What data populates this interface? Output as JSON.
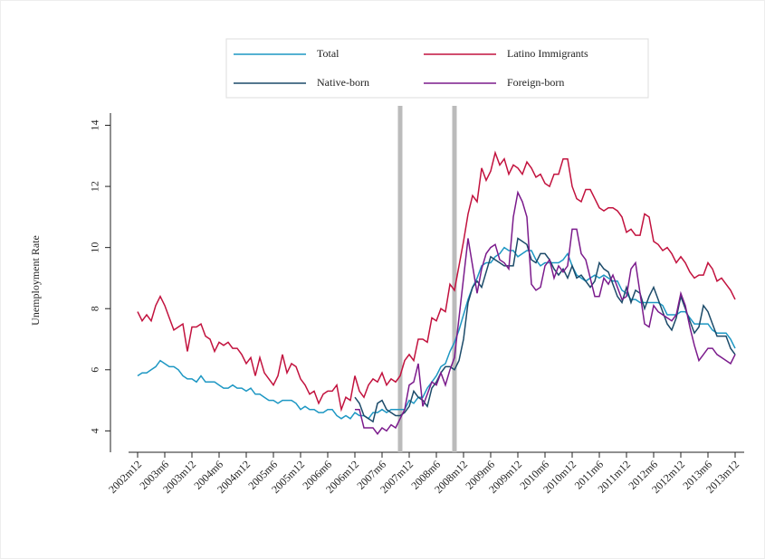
{
  "chart_data": {
    "type": "line",
    "ylabel": "Unemployment Rate",
    "categories": [
      "2002m12",
      null,
      null,
      null,
      null,
      null,
      "2003m6",
      null,
      null,
      null,
      null,
      null,
      "2003m12",
      null,
      null,
      null,
      null,
      null,
      "2004m6",
      null,
      null,
      null,
      null,
      null,
      "2004m12",
      null,
      null,
      null,
      null,
      null,
      "2005m6",
      null,
      null,
      null,
      null,
      null,
      "2005m12",
      null,
      null,
      null,
      null,
      null,
      "2006m6",
      null,
      null,
      null,
      null,
      null,
      "2006m12",
      null,
      null,
      null,
      null,
      null,
      "2007m6",
      null,
      null,
      null,
      null,
      null,
      "2007m12",
      null,
      null,
      null,
      null,
      null,
      "2008m6",
      null,
      null,
      null,
      null,
      null,
      "2008m12",
      null,
      null,
      null,
      null,
      null,
      "2009m6",
      null,
      null,
      null,
      null,
      null,
      "2009m12",
      null,
      null,
      null,
      null,
      null,
      "2010m6",
      null,
      null,
      null,
      null,
      null,
      "2010m12",
      null,
      null,
      null,
      null,
      null,
      "2011m6",
      null,
      null,
      null,
      null,
      null,
      "2011m12",
      null,
      null,
      null,
      null,
      null,
      "2012m6",
      null,
      null,
      null,
      null,
      null,
      "2012m12",
      null,
      null,
      null,
      null,
      null,
      "2013m6",
      null,
      null,
      null,
      null,
      null,
      "2013m12"
    ],
    "series": [
      {
        "name": "Total",
        "color": "#1d97c3",
        "values": [
          5.8,
          5.9,
          5.9,
          6.0,
          6.1,
          6.3,
          6.2,
          6.1,
          6.1,
          6.0,
          5.8,
          5.7,
          5.7,
          5.6,
          5.8,
          5.6,
          5.6,
          5.6,
          5.5,
          5.4,
          5.4,
          5.5,
          5.4,
          5.4,
          5.3,
          5.4,
          5.2,
          5.2,
          5.1,
          5.0,
          5.0,
          4.9,
          5.0,
          5.0,
          5.0,
          4.9,
          4.7,
          4.8,
          4.7,
          4.7,
          4.6,
          4.6,
          4.7,
          4.7,
          4.5,
          4.4,
          4.5,
          4.4,
          4.6,
          4.5,
          4.5,
          4.4,
          4.6,
          4.6,
          4.7,
          4.6,
          4.7,
          4.7,
          4.7,
          4.7,
          5.0,
          4.9,
          5.1,
          5.1,
          5.4,
          5.6,
          5.8,
          6.1,
          6.2,
          6.6,
          6.9,
          7.3,
          7.8,
          8.3,
          8.7,
          9.0,
          9.4,
          9.5,
          9.5,
          9.7,
          9.8,
          10.0,
          9.9,
          9.9,
          9.7,
          9.8,
          9.9,
          9.9,
          9.6,
          9.4,
          9.5,
          9.5,
          9.5,
          9.5,
          9.6,
          9.8,
          9.4,
          9.1,
          9.0,
          8.9,
          9.0,
          9.1,
          9.0,
          9.1,
          9.0,
          8.9,
          8.9,
          8.6,
          8.5,
          8.3,
          8.3,
          8.2,
          8.2,
          8.2,
          8.2,
          8.2,
          8.1,
          7.8,
          7.8,
          7.8,
          7.9,
          7.9,
          7.7,
          7.5,
          7.5,
          7.5,
          7.5,
          7.3,
          7.2,
          7.2,
          7.2,
          7.0,
          6.7
        ]
      },
      {
        "name": "Latino Immigrants",
        "color": "#c2123e",
        "values": [
          7.9,
          7.6,
          7.8,
          7.6,
          8.1,
          8.4,
          8.1,
          7.7,
          7.3,
          7.4,
          7.5,
          6.6,
          7.4,
          7.4,
          7.5,
          7.1,
          7.0,
          6.6,
          6.9,
          6.8,
          6.9,
          6.7,
          6.7,
          6.5,
          6.2,
          6.4,
          5.8,
          6.4,
          5.9,
          5.7,
          5.5,
          5.8,
          6.5,
          5.9,
          6.2,
          6.1,
          5.7,
          5.5,
          5.2,
          5.3,
          4.9,
          5.2,
          5.3,
          5.3,
          5.5,
          4.7,
          5.1,
          5.0,
          5.8,
          5.3,
          5.1,
          5.5,
          5.7,
          5.6,
          5.9,
          5.5,
          5.7,
          5.6,
          5.8,
          6.3,
          6.5,
          6.3,
          7.0,
          7.0,
          6.9,
          7.7,
          7.6,
          8.0,
          7.9,
          8.8,
          8.6,
          9.4,
          10.2,
          11.1,
          11.7,
          11.5,
          12.6,
          12.2,
          12.5,
          13.1,
          12.7,
          12.9,
          12.4,
          12.7,
          12.6,
          12.4,
          12.8,
          12.6,
          12.3,
          12.4,
          12.1,
          12.0,
          12.4,
          12.4,
          12.9,
          12.9,
          12.0,
          11.6,
          11.5,
          11.9,
          11.9,
          11.6,
          11.3,
          11.2,
          11.3,
          11.3,
          11.2,
          11.0,
          10.5,
          10.6,
          10.4,
          10.4,
          11.1,
          11.0,
          10.2,
          10.1,
          9.9,
          10.0,
          9.8,
          9.5,
          9.7,
          9.5,
          9.2,
          9.0,
          9.1,
          9.1,
          9.5,
          9.3,
          8.9,
          9.0,
          8.8,
          8.6,
          8.3
        ]
      },
      {
        "name": "Native-born",
        "color": "#1b4a69",
        "values": [
          null,
          null,
          null,
          null,
          null,
          null,
          null,
          null,
          null,
          null,
          null,
          null,
          null,
          null,
          null,
          null,
          null,
          null,
          null,
          null,
          null,
          null,
          null,
          null,
          null,
          null,
          null,
          null,
          null,
          null,
          null,
          null,
          null,
          null,
          null,
          null,
          null,
          null,
          null,
          null,
          null,
          null,
          null,
          null,
          null,
          null,
          null,
          null,
          5.1,
          4.9,
          4.5,
          4.4,
          4.3,
          4.9,
          5.0,
          4.7,
          4.6,
          4.5,
          4.5,
          4.6,
          4.8,
          5.3,
          5.1,
          5.0,
          4.8,
          5.4,
          5.6,
          5.9,
          6.1,
          6.1,
          6.0,
          6.3,
          7.0,
          8.2,
          8.7,
          8.9,
          8.7,
          9.2,
          9.7,
          9.6,
          9.5,
          9.4,
          9.4,
          9.4,
          10.3,
          10.2,
          10.1,
          9.6,
          9.5,
          9.8,
          9.8,
          9.6,
          9.3,
          9.1,
          9.3,
          9.0,
          9.4,
          9.0,
          9.1,
          8.9,
          8.7,
          8.9,
          9.5,
          9.3,
          9.2,
          8.8,
          8.4,
          8.2,
          8.7,
          8.2,
          8.6,
          8.5,
          8.0,
          8.4,
          8.7,
          8.3,
          7.9,
          7.5,
          7.3,
          7.7,
          8.4,
          8.0,
          7.6,
          7.2,
          7.4,
          8.1,
          7.9,
          7.5,
          7.1,
          7.1,
          7.1,
          6.7,
          6.5
        ]
      },
      {
        "name": "Foreign-born",
        "color": "#7b1b8c",
        "values": [
          null,
          null,
          null,
          null,
          null,
          null,
          null,
          null,
          null,
          null,
          null,
          null,
          null,
          null,
          null,
          null,
          null,
          null,
          null,
          null,
          null,
          null,
          null,
          null,
          null,
          null,
          null,
          null,
          null,
          null,
          null,
          null,
          null,
          null,
          null,
          null,
          null,
          null,
          null,
          null,
          null,
          null,
          null,
          null,
          null,
          null,
          null,
          null,
          4.7,
          4.7,
          4.1,
          4.1,
          4.1,
          3.9,
          4.1,
          4.0,
          4.2,
          4.1,
          4.4,
          4.7,
          5.5,
          5.6,
          6.2,
          4.8,
          5.2,
          5.6,
          5.5,
          5.9,
          5.5,
          6.0,
          6.4,
          7.7,
          9.0,
          10.3,
          9.4,
          8.5,
          9.3,
          9.8,
          10.0,
          10.1,
          9.6,
          9.5,
          9.3,
          11.0,
          11.8,
          11.5,
          11.0,
          8.8,
          8.6,
          8.7,
          9.4,
          9.6,
          9.0,
          9.4,
          9.2,
          9.4,
          10.6,
          10.6,
          9.8,
          9.6,
          9.0,
          8.4,
          8.4,
          9.0,
          8.8,
          9.1,
          8.7,
          8.3,
          8.4,
          9.3,
          9.5,
          8.5,
          7.5,
          7.4,
          8.1,
          7.9,
          7.8,
          7.7,
          7.6,
          7.8,
          8.5,
          8.1,
          7.4,
          6.8,
          6.3,
          6.5,
          6.7,
          6.7,
          6.5,
          6.4,
          6.3,
          6.2,
          6.5
        ]
      }
    ],
    "ylim": [
      3.3,
      14.4
    ],
    "yticks": [
      4,
      6,
      8,
      10,
      12,
      14
    ],
    "vlines": [
      58,
      70
    ],
    "vline_color": "#bbbbbb"
  }
}
